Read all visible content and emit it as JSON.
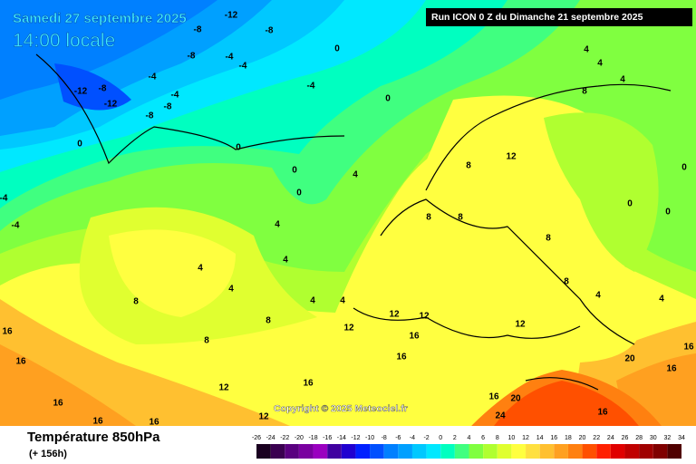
{
  "header": {
    "date": "Samedi 27 septembre 2025",
    "time": "14:00 locale",
    "run": "Run ICON 0 Z du Dimanche 21 septembre 2025"
  },
  "footer": {
    "title": "Température 850hPa",
    "lead": "(+ 156h)",
    "copyright": "Copyright © 2025 Meteociel.fr"
  },
  "legend": {
    "ticks": [
      -26,
      -24,
      -22,
      -20,
      -18,
      -16,
      -14,
      -12,
      -10,
      -8,
      -6,
      -4,
      -2,
      0,
      2,
      4,
      6,
      8,
      10,
      12,
      14,
      16,
      18,
      20,
      22,
      24,
      26,
      28,
      30,
      32,
      34
    ],
    "colors": [
      "#1a0020",
      "#3a0050",
      "#5a0080",
      "#7a00a0",
      "#9a00c0",
      "#4000a0",
      "#2000d0",
      "#0020ff",
      "#0050ff",
      "#0080ff",
      "#00a0ff",
      "#00c8ff",
      "#00e8ff",
      "#00ffc0",
      "#40ff80",
      "#80ff40",
      "#b0ff30",
      "#e0ff30",
      "#ffff40",
      "#ffe040",
      "#ffc030",
      "#ffa020",
      "#ff8010",
      "#ff5000",
      "#ff2000",
      "#e00000",
      "#c00000",
      "#a00000",
      "#800000",
      "#500000"
    ]
  },
  "contour_labels": [
    -12,
    -8,
    -8,
    -4,
    -8,
    -4,
    -4,
    -4,
    -8,
    -8,
    -12,
    -12,
    -8,
    -4,
    0,
    0,
    0,
    0,
    0,
    4,
    4,
    4,
    4,
    4,
    4,
    4,
    0,
    -4,
    -4,
    4,
    4,
    4,
    8,
    12,
    8,
    8,
    8,
    8,
    8,
    4,
    4,
    0,
    0,
    0,
    8,
    8,
    8,
    12,
    12,
    12,
    16,
    16,
    12,
    16,
    12,
    16,
    16,
    16,
    16,
    12,
    24,
    20,
    16,
    16,
    20,
    16,
    16,
    16
  ]
}
